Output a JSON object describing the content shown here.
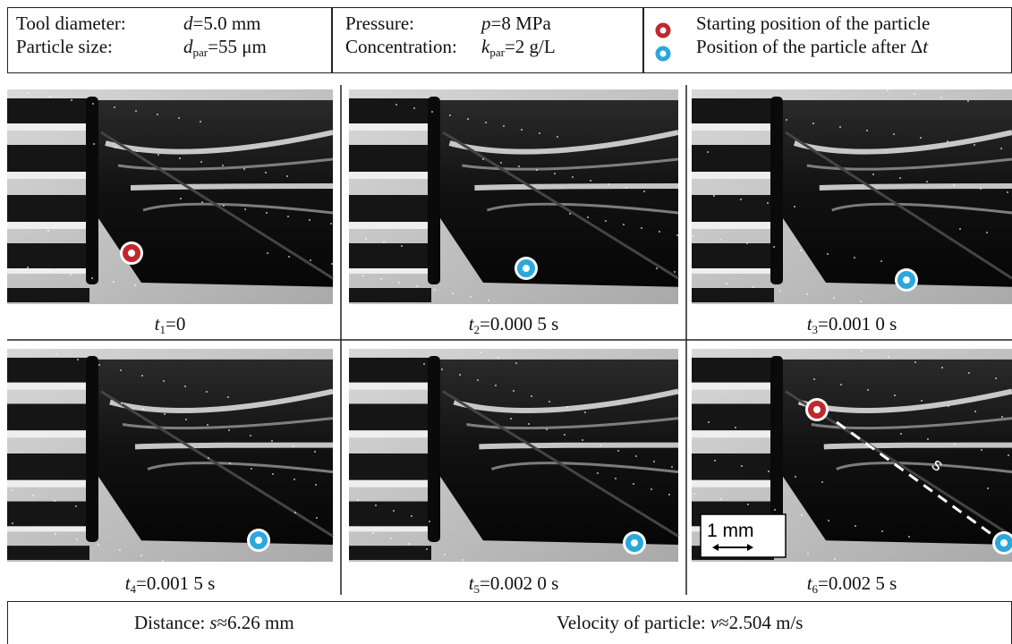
{
  "header": {
    "params": [
      {
        "label": "Tool diameter:",
        "symbol": "d",
        "value": "=5.0 mm"
      },
      {
        "label": "Particle size:",
        "symbol": "d",
        "subscript": "par",
        "value": "=55 μm"
      },
      {
        "label": "Pressure:",
        "symbol": "p",
        "value": "=8 MPa"
      },
      {
        "label": "Concentration:",
        "symbol": "k",
        "subscript": "par",
        "value": "=2 g/L"
      }
    ],
    "legend": [
      {
        "text": "Starting position of the particle"
      },
      {
        "text": "Position of the particle after Δ",
        "italic": "t"
      }
    ]
  },
  "frames": [
    {
      "symbol": "t",
      "subscript": "1",
      "value": "=0"
    },
    {
      "symbol": "t",
      "subscript": "2",
      "value": "=0.000 5 s"
    },
    {
      "symbol": "t",
      "subscript": "3",
      "value": "=0.001 0 s"
    },
    {
      "symbol": "t",
      "subscript": "4",
      "value": "=0.001 5 s"
    },
    {
      "symbol": "t",
      "subscript": "5",
      "value": "=0.002 0 s"
    },
    {
      "symbol": "t",
      "subscript": "6",
      "value": "=0.002 5 s"
    }
  ],
  "scale_bar": "1 mm",
  "annotation": "s",
  "footer": {
    "distance": {
      "label": "Distance:",
      "symbol": "s",
      "value": "≈6.26 mm"
    },
    "velocity": {
      "label": "Velocity of particle:",
      "symbol": "v",
      "value": "≈2.504 m/s"
    }
  }
}
